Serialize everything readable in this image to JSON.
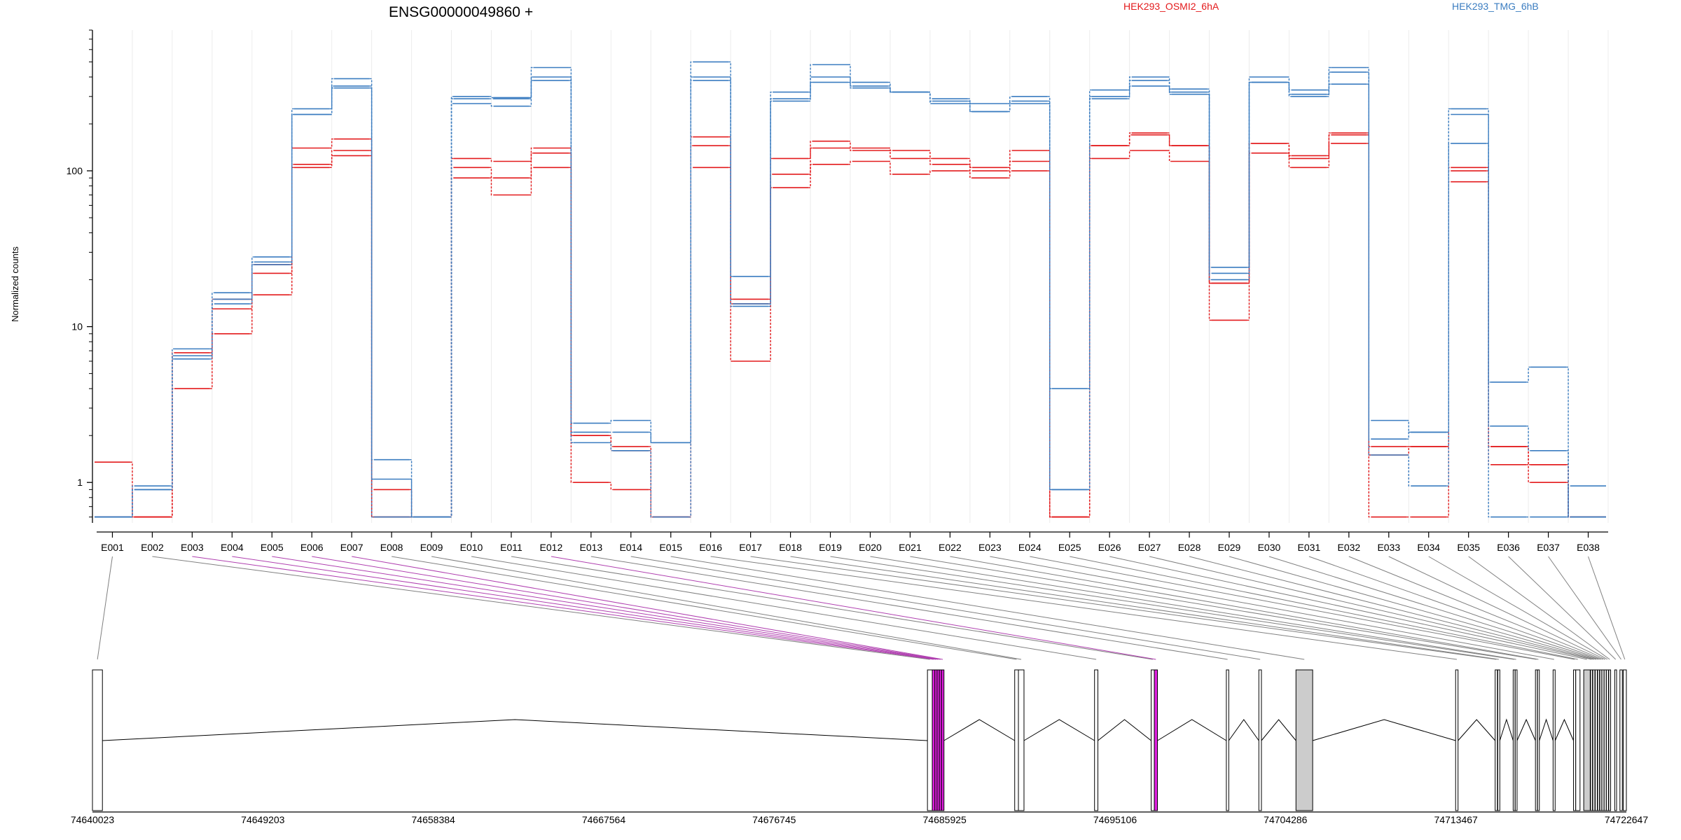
{
  "chart_data": {
    "type": "line",
    "title": "ENSG00000049860 +",
    "ylabel": "Normalized counts",
    "xlabel": "",
    "yscale": "log",
    "ylim": [
      0.55,
      800
    ],
    "yticks": [
      1,
      10,
      100
    ],
    "ytick_labels": [
      "1",
      "10",
      "100"
    ],
    "grid": "vertical light gray lines at exon boundaries",
    "legend_placement": "top",
    "categories": [
      "E001",
      "E002",
      "E003",
      "E004",
      "E005",
      "E006",
      "E007",
      "E008",
      "E009",
      "E010",
      "E011",
      "E012",
      "E013",
      "E014",
      "E015",
      "E016",
      "E017",
      "E018",
      "E019",
      "E020",
      "E021",
      "E022",
      "E023",
      "E024",
      "E025",
      "E026",
      "E027",
      "E028",
      "E029",
      "E030",
      "E031",
      "E032",
      "E033",
      "E034",
      "E035",
      "E036",
      "E037",
      "E038"
    ],
    "groups": [
      {
        "name": "HEK293_OSMI2_6hA",
        "color": "#e31a1c"
      },
      {
        "name": "HEK293_TMG_6hB",
        "color": "#3a7cc0"
      }
    ],
    "series": [
      {
        "group": "HEK293_OSMI2_6hA",
        "values": [
          1.35,
          0.6,
          6.8,
          15,
          25,
          140,
          160,
          0.6,
          0.6,
          120,
          115,
          140,
          2.0,
          1.7,
          0.6,
          165,
          15,
          120,
          155,
          140,
          135,
          120,
          105,
          135,
          0.6,
          145,
          175,
          145,
          19,
          150,
          125,
          175,
          1.7,
          1.7,
          105,
          1.7,
          1.3,
          0.6
        ]
      },
      {
        "group": "HEK293_OSMI2_6hA",
        "values": [
          0.6,
          0.6,
          6.5,
          13,
          22,
          110,
          135,
          0.9,
          0.6,
          105,
          90,
          130,
          2.0,
          1.6,
          0.6,
          145,
          14,
          95,
          140,
          135,
          120,
          110,
          100,
          115,
          0.6,
          145,
          170,
          145,
          19,
          150,
          120,
          170,
          1.5,
          1.7,
          100,
          1.7,
          1.3,
          0.6
        ]
      },
      {
        "group": "HEK293_OSMI2_6hA",
        "values": [
          0.6,
          0.6,
          4.0,
          9,
          16,
          105,
          125,
          0.6,
          0.6,
          90,
          70,
          105,
          1.0,
          0.9,
          0.6,
          105,
          6,
          78,
          110,
          115,
          95,
          100,
          90,
          100,
          0.6,
          120,
          135,
          115,
          11,
          130,
          105,
          150,
          0.6,
          0.6,
          85,
          1.3,
          1.0,
          0.6
        ]
      },
      {
        "group": "HEK293_TMG_6hB",
        "values": [
          0.6,
          0.95,
          7.2,
          16.5,
          28,
          250,
          390,
          1.05,
          0.6,
          300,
          295,
          460,
          2.4,
          2.5,
          1.8,
          500,
          21,
          320,
          480,
          370,
          320,
          290,
          270,
          300,
          4.0,
          330,
          400,
          335,
          24,
          400,
          330,
          460,
          2.5,
          2.1,
          250,
          4.4,
          5.5,
          0.6
        ]
      },
      {
        "group": "HEK293_TMG_6hB",
        "values": [
          0.6,
          0.9,
          6.5,
          15,
          26,
          230,
          350,
          1.4,
          0.6,
          290,
          290,
          400,
          2.1,
          2.1,
          1.8,
          400,
          14,
          290,
          400,
          350,
          320,
          280,
          240,
          280,
          0.9,
          300,
          380,
          320,
          22,
          370,
          310,
          430,
          1.9,
          2.1,
          230,
          2.3,
          1.6,
          0.6
        ]
      },
      {
        "group": "HEK293_TMG_6hB",
        "values": [
          0.6,
          0.9,
          6.2,
          14,
          25,
          230,
          340,
          0.6,
          0.6,
          270,
          260,
          380,
          1.8,
          1.6,
          0.6,
          380,
          13.5,
          280,
          370,
          340,
          320,
          270,
          240,
          270,
          0.9,
          290,
          350,
          310,
          20,
          370,
          300,
          360,
          1.5,
          0.95,
          150,
          0.6,
          0.6,
          0.95
        ]
      }
    ],
    "gene_model": {
      "coordinate_labels": [
        "74640023",
        "74649203",
        "74658384",
        "74667564",
        "74676745",
        "74685925",
        "74695106",
        "74704286",
        "74713467",
        "74722647"
      ],
      "genomic_range": [
        74640023,
        74722647
      ],
      "exon_groups": [
        {
          "label": "E001",
          "start": 74640023,
          "end": 74640560,
          "fill": "#ffffff"
        },
        {
          "label": "E002",
          "start": 74685000,
          "end": 74685260,
          "fill": "#ffffff"
        },
        {
          "label": "E003",
          "start": 74685260,
          "end": 74685400,
          "fill": "#e020e0"
        },
        {
          "label": "E004",
          "start": 74685400,
          "end": 74685520,
          "fill": "#e020e0"
        },
        {
          "label": "E005",
          "start": 74685520,
          "end": 74685640,
          "fill": "#e020e0"
        },
        {
          "label": "E006",
          "start": 74685640,
          "end": 74685760,
          "fill": "#e020e0"
        },
        {
          "label": "E007",
          "start": 74685760,
          "end": 74685890,
          "fill": "#e020e0"
        },
        {
          "label": "E008",
          "start": 74689700,
          "end": 74689900,
          "fill": "#ffffff"
        },
        {
          "label": "E009",
          "start": 74689900,
          "end": 74690200,
          "fill": "#ffffff"
        },
        {
          "label": "E010",
          "start": 74694000,
          "end": 74694180,
          "fill": "#ffffff"
        },
        {
          "label": "E011",
          "start": 74697050,
          "end": 74697220,
          "fill": "#ffffff"
        },
        {
          "label": "E012",
          "start": 74697220,
          "end": 74697390,
          "fill": "#e020e0"
        },
        {
          "label": "E013",
          "start": 74701100,
          "end": 74701230,
          "fill": "#ffffff"
        },
        {
          "label": "E014",
          "start": 74702850,
          "end": 74702990,
          "fill": "#ffffff"
        },
        {
          "label": "E015",
          "start": 74704850,
          "end": 74705750,
          "fill": "#cccccc"
        },
        {
          "label": "E016",
          "start": 74713450,
          "end": 74713580,
          "fill": "#ffffff"
        },
        {
          "label": "E017",
          "start": 74715580,
          "end": 74715700,
          "fill": "#ffffff"
        },
        {
          "label": "E018",
          "start": 74715720,
          "end": 74715830,
          "fill": "#ffffff"
        },
        {
          "label": "E019",
          "start": 74716550,
          "end": 74716650,
          "fill": "#ffffff"
        },
        {
          "label": "E020",
          "start": 74716660,
          "end": 74716760,
          "fill": "#ffffff"
        },
        {
          "label": "E021",
          "start": 74717750,
          "end": 74717850,
          "fill": "#ffffff"
        },
        {
          "label": "E022",
          "start": 74717860,
          "end": 74717960,
          "fill": "#ffffff"
        },
        {
          "label": "E023",
          "start": 74718700,
          "end": 74718810,
          "fill": "#ffffff"
        },
        {
          "label": "E024",
          "start": 74719800,
          "end": 74719920,
          "fill": "#ffffff"
        },
        {
          "label": "E025",
          "start": 74719920,
          "end": 74720150,
          "fill": "#ffffff"
        },
        {
          "label": "E026",
          "start": 74720350,
          "end": 74720700,
          "fill": "#cccccc"
        },
        {
          "label": "E027",
          "start": 74720720,
          "end": 74720820,
          "fill": "#ffffff"
        },
        {
          "label": "E028",
          "start": 74720840,
          "end": 74720950,
          "fill": "#ffffff"
        },
        {
          "label": "E029",
          "start": 74720970,
          "end": 74721080,
          "fill": "#ffffff"
        },
        {
          "label": "E030",
          "start": 74721100,
          "end": 74721200,
          "fill": "#ffffff"
        },
        {
          "label": "E031",
          "start": 74721220,
          "end": 74721320,
          "fill": "#ffffff"
        },
        {
          "label": "E032",
          "start": 74721330,
          "end": 74721440,
          "fill": "#ffffff"
        },
        {
          "label": "E033",
          "start": 74721450,
          "end": 74721560,
          "fill": "#ffffff"
        },
        {
          "label": "E034",
          "start": 74721570,
          "end": 74721680,
          "fill": "#ffffff"
        },
        {
          "label": "E035",
          "start": 74721700,
          "end": 74721800,
          "fill": "#ffffff"
        },
        {
          "label": "E036",
          "start": 74722020,
          "end": 74722120,
          "fill": "#ffffff"
        },
        {
          "label": "E037",
          "start": 74722300,
          "end": 74722430,
          "fill": "#ffffff"
        },
        {
          "label": "E038",
          "start": 74722480,
          "end": 74722647,
          "fill": "#ffffff"
        }
      ]
    }
  }
}
